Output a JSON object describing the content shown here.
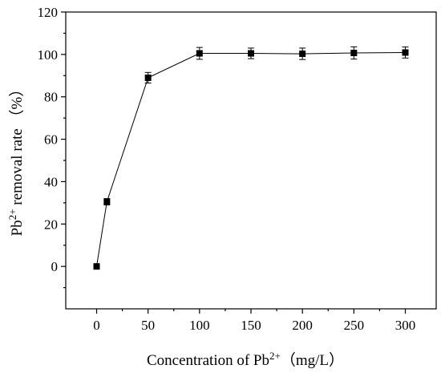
{
  "chart_data": {
    "type": "line",
    "title": "",
    "xlabel": {
      "prefix": "Concentration of  Pb",
      "sup": "2+",
      "suffix": "（mg/L）"
    },
    "ylabel": {
      "prefix": "Pb",
      "sup": "2+",
      "suffix": " removal rate （%）"
    },
    "xlim": [
      -30,
      330
    ],
    "ylim": [
      -20,
      120
    ],
    "xticks": [
      0,
      50,
      100,
      150,
      200,
      250,
      300
    ],
    "xtick_labels": [
      "0",
      "50",
      "100",
      "150",
      "200",
      "250",
      "300"
    ],
    "yticks": [
      0,
      20,
      40,
      60,
      80,
      100,
      120
    ],
    "ytick_labels": [
      "0",
      "20",
      "40",
      "60",
      "80",
      "100",
      "120"
    ],
    "grid": false,
    "legend": "none",
    "marker": "square",
    "series": [
      {
        "x": [
          0,
          10,
          50,
          100,
          150,
          200,
          250,
          300
        ],
        "values": [
          0,
          30.5,
          89,
          100.5,
          100.5,
          100.3,
          100.7,
          100.9
        ],
        "error": [
          0,
          1.5,
          2.5,
          2.8,
          2.5,
          2.7,
          2.9,
          2.6
        ]
      }
    ]
  }
}
